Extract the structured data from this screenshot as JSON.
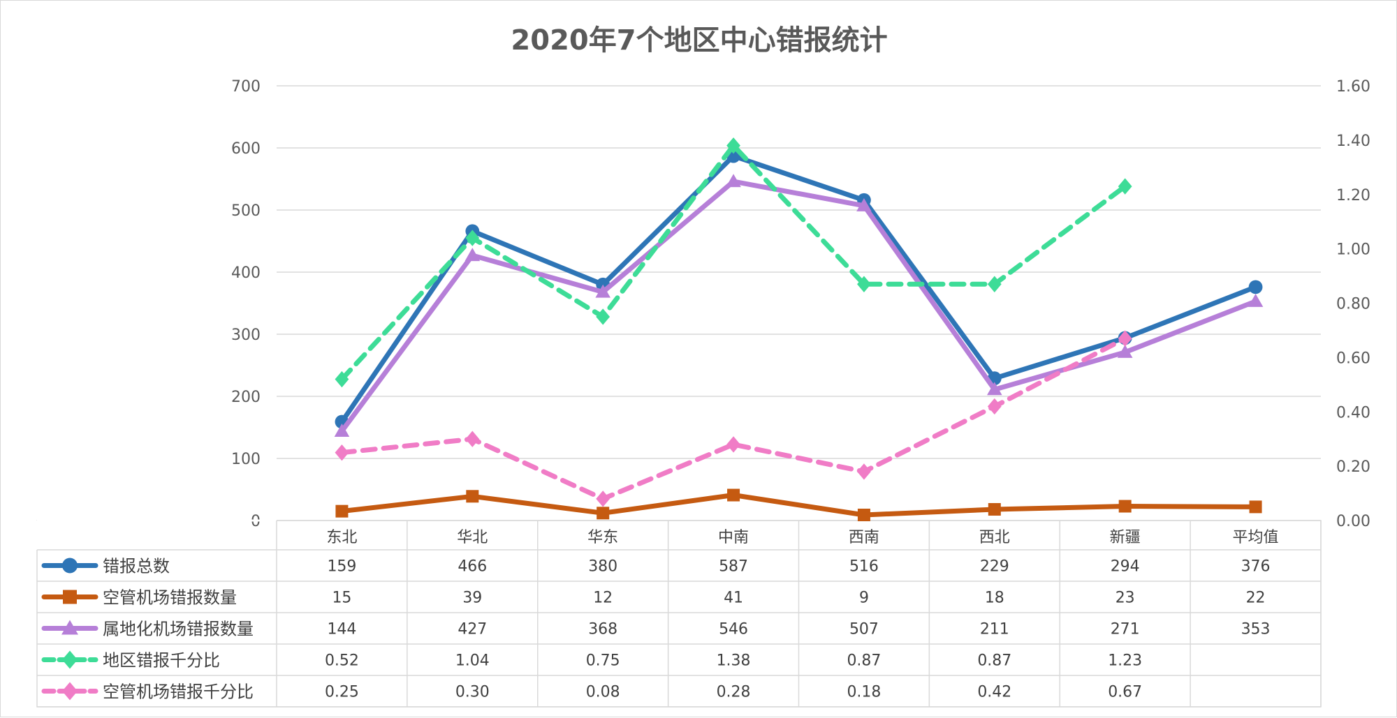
{
  "chart_data": {
    "type": "line",
    "title": "2020年7个地区中心错报统计",
    "categories": [
      "东北",
      "华北",
      "华东",
      "中南",
      "西南",
      "西北",
      "新疆",
      "平均值"
    ],
    "y_left": {
      "ylim": [
        0,
        700
      ],
      "ticks": [
        "0",
        "100",
        "200",
        "300",
        "400",
        "500",
        "600",
        "700"
      ]
    },
    "y_right": {
      "ylim": [
        0,
        1.6
      ],
      "ticks": [
        "0.00",
        "0.20",
        "0.40",
        "0.60",
        "0.80",
        "1.00",
        "1.20",
        "1.40",
        "1.60"
      ]
    },
    "grid": true,
    "legend": "data-table-bottom",
    "series": [
      {
        "name": "错报总数",
        "axis": "left",
        "color": "#2E75B6",
        "marker": "circle",
        "dashed": false,
        "values": [
          159,
          466,
          380,
          587,
          516,
          229,
          294,
          376
        ],
        "table": [
          "159",
          "466",
          "380",
          "587",
          "516",
          "229",
          "294",
          "376"
        ]
      },
      {
        "name": "空管机场错报数量",
        "axis": "left",
        "color": "#C55A11",
        "marker": "square",
        "dashed": false,
        "values": [
          15,
          39,
          12,
          41,
          9,
          18,
          23,
          22
        ],
        "table": [
          "15",
          "39",
          "12",
          "41",
          "9",
          "18",
          "23",
          "22"
        ]
      },
      {
        "name": "属地化机场错报数量",
        "axis": "left",
        "color": "#B67FD8",
        "marker": "triangle",
        "dashed": false,
        "values": [
          144,
          427,
          368,
          546,
          507,
          211,
          271,
          353
        ],
        "table": [
          "144",
          "427",
          "368",
          "546",
          "507",
          "211",
          "271",
          "353"
        ]
      },
      {
        "name": "地区错报千分比",
        "axis": "right",
        "color": "#3DDC97",
        "marker": "diamond",
        "dashed": true,
        "values": [
          0.52,
          1.04,
          0.75,
          1.38,
          0.87,
          0.87,
          1.23,
          null
        ],
        "table": [
          "0.52",
          "1.04",
          "0.75",
          "1.38",
          "0.87",
          "0.87",
          "1.23",
          ""
        ]
      },
      {
        "name": "空管机场错报千分比",
        "axis": "right",
        "color": "#F07CC6",
        "marker": "diamond",
        "dashed": true,
        "values": [
          0.25,
          0.3,
          0.08,
          0.28,
          0.18,
          0.42,
          0.67,
          null
        ],
        "table": [
          "0.25",
          "0.30",
          "0.08",
          "0.28",
          "0.18",
          "0.42",
          "0.67",
          ""
        ]
      }
    ]
  }
}
